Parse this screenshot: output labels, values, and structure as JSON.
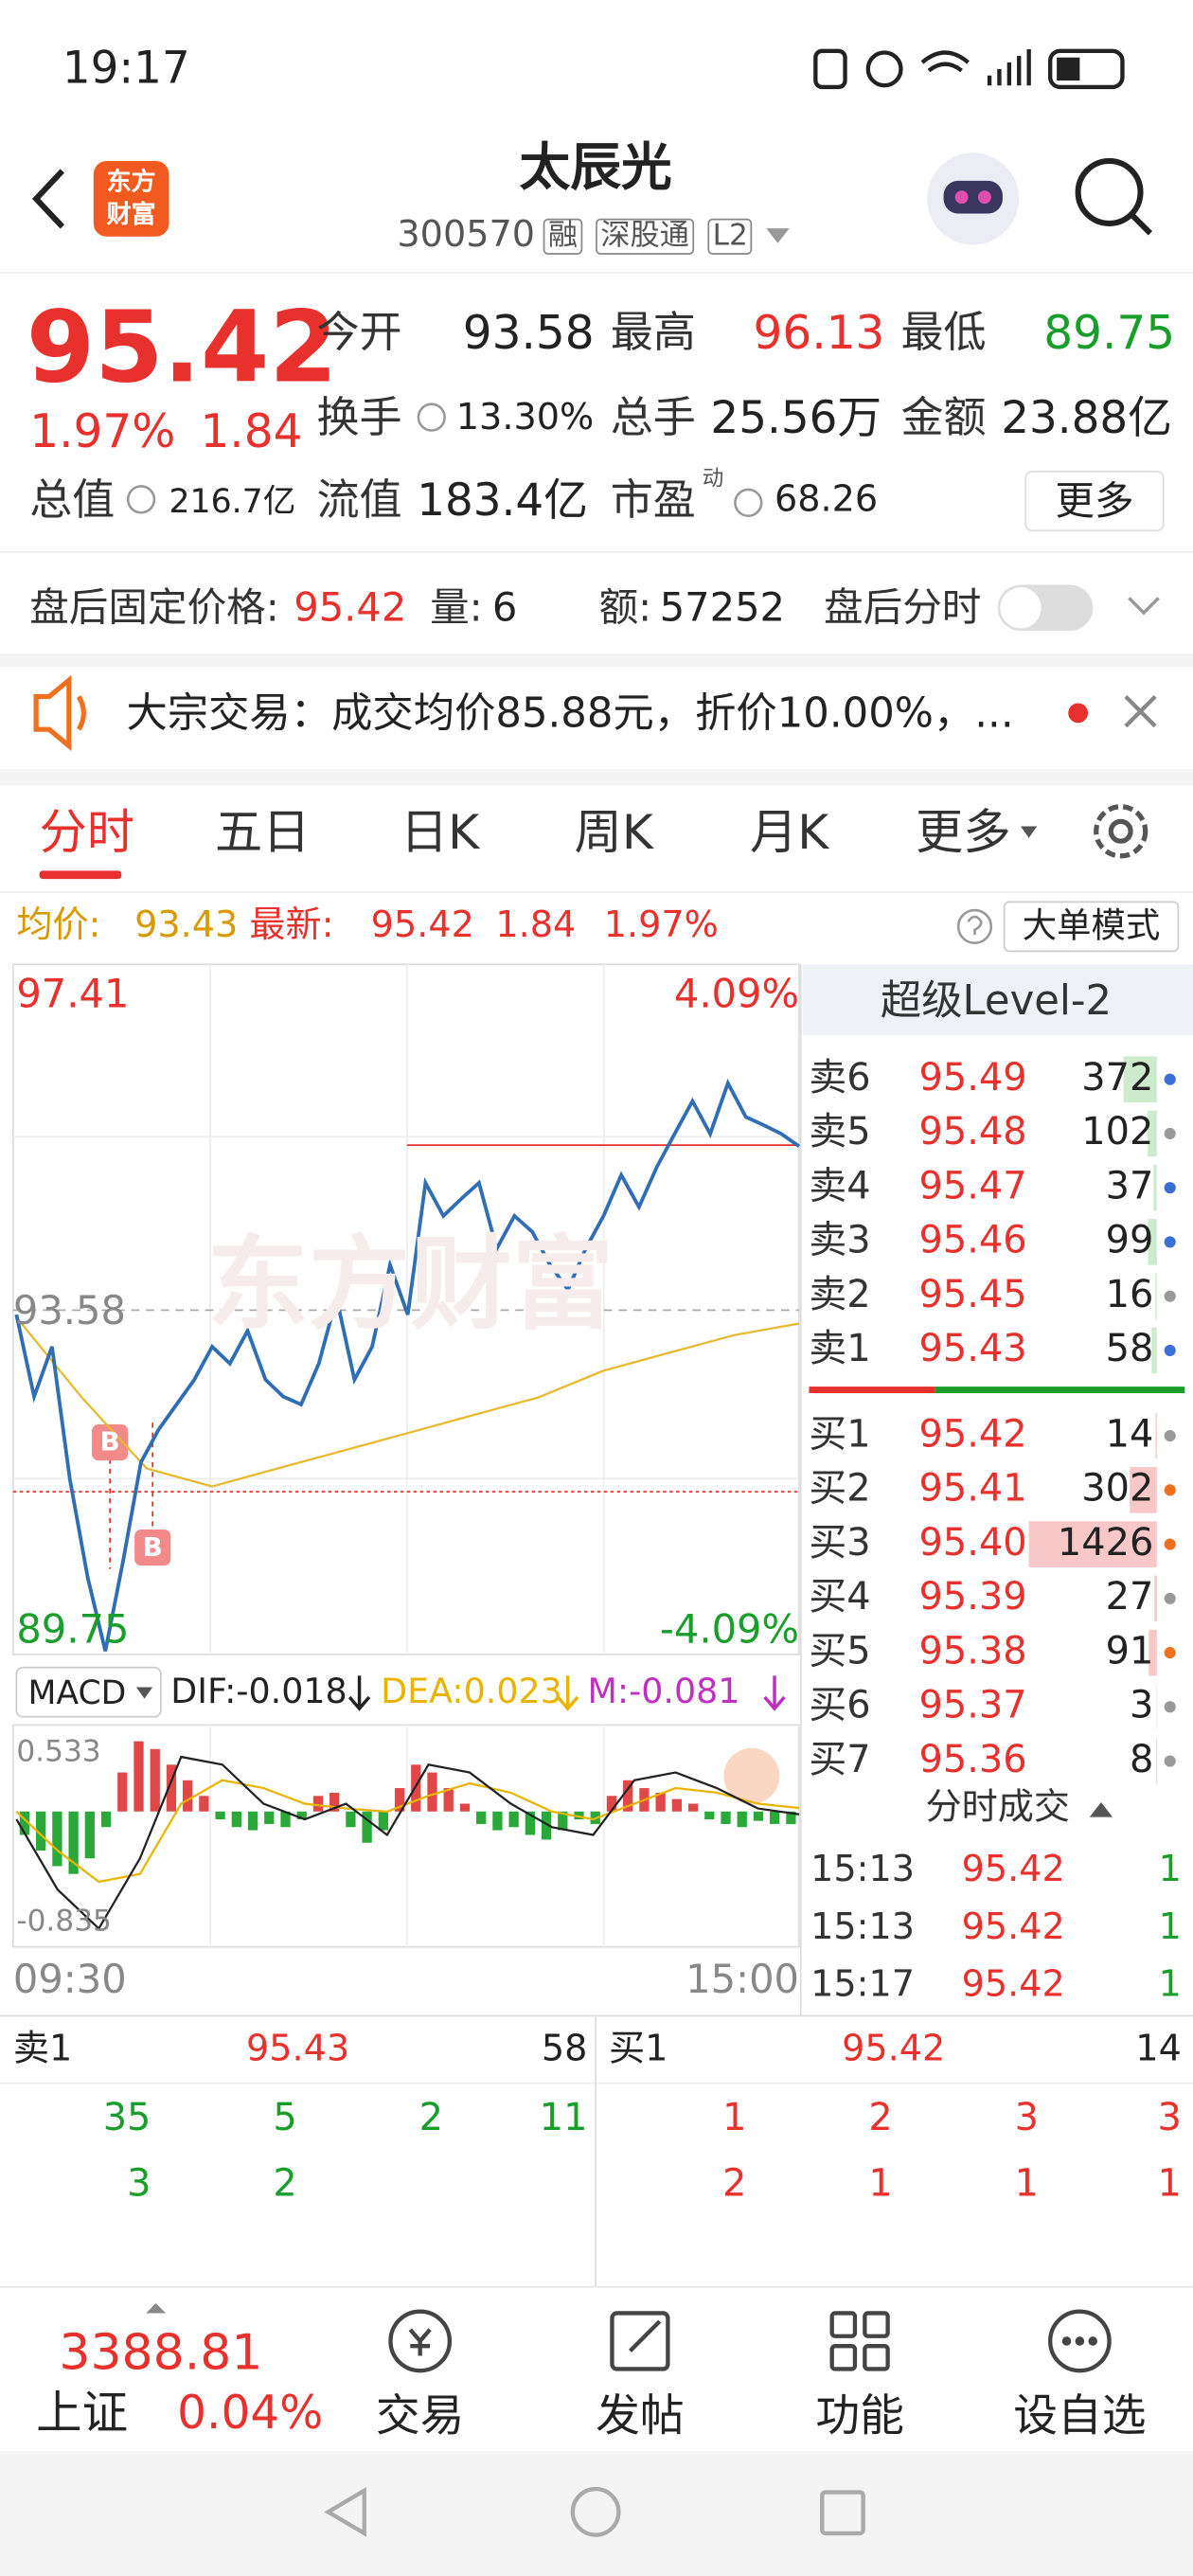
{
  "status_bar": {
    "time": "19:17"
  },
  "header": {
    "logo": [
      "东方",
      "财富"
    ],
    "title": "太辰光",
    "code": "300570",
    "tags": [
      "融",
      "深股通",
      "L2"
    ]
  },
  "quote": {
    "price": "95.42",
    "change_pct": "1.97%",
    "change": "1.84",
    "fields": [
      {
        "label": "今开",
        "value": "93.58"
      },
      {
        "label": "最高",
        "value": "96.13"
      },
      {
        "label": "最低",
        "value": "89.75"
      },
      {
        "label": "换手",
        "value": "13.30%"
      },
      {
        "label": "总手",
        "value": "25.56万"
      },
      {
        "label": "金额",
        "value": "23.88亿"
      },
      {
        "label": "总值",
        "value": "216.7亿"
      },
      {
        "label": "流值",
        "value": "183.4亿"
      },
      {
        "label": "市盈",
        "sup": "动",
        "value": "68.26"
      }
    ],
    "more": "更多"
  },
  "after_hours": {
    "label": "盘后固定价格:",
    "price": "95.42",
    "vol_label": "量:",
    "vol": "6",
    "amount_label": "额:",
    "amount": "57252",
    "toggle": "盘后分时"
  },
  "notice": "大宗交易：成交均价85.88元，折价10.00%，...",
  "tabs": [
    "分时",
    "五日",
    "日K",
    "周K",
    "月K",
    "更多"
  ],
  "info": {
    "avg_label": "均价:",
    "avg": "93.43",
    "last_label": "最新:",
    "last": "95.42",
    "change": "1.84",
    "change_pct": "1.97%",
    "mode": "大单模式"
  },
  "intraday": {
    "watermark": "东方财富",
    "ylim": [
      89.75,
      97.41
    ],
    "preclose": 93.58,
    "pct_top": "4.09%",
    "pct_bottom": "-4.09%",
    "xlabels": [
      "09:30",
      "15:00"
    ],
    "markers": [
      "B",
      "B"
    ],
    "price": [
      93.53,
      92.61,
      93.17,
      91.69,
      90.58,
      89.75,
      90.76,
      91.87,
      92.24,
      92.52,
      92.8,
      93.17,
      92.98,
      93.35,
      92.8,
      92.61,
      92.52,
      92.98,
      93.72,
      92.8,
      93.17,
      94.09,
      93.53,
      95.01,
      94.64,
      94.83,
      95.01,
      94.27,
      94.64,
      94.46,
      94.09,
      93.81,
      94.27,
      94.64,
      95.1,
      94.74,
      95.19,
      95.56,
      95.93,
      95.56,
      96.13,
      95.75,
      95.66,
      95.56,
      95.42
    ],
    "avg": [
      93.5,
      92.6,
      91.8,
      91.6,
      91.8,
      92.0,
      92.2,
      92.4,
      92.6,
      92.9,
      93.1,
      93.3,
      93.43
    ]
  },
  "macd": {
    "selector": "MACD",
    "dif": "DIF:-0.018",
    "dea": "DEA:0.023",
    "m": "M:-0.081",
    "ylim": [
      -0.835,
      0.533
    ],
    "hist": [
      -0.15,
      -0.25,
      -0.35,
      -0.4,
      -0.3,
      -0.1,
      0.25,
      0.45,
      0.4,
      0.3,
      0.2,
      0.1,
      -0.05,
      -0.1,
      -0.12,
      -0.08,
      -0.1,
      -0.05,
      0.1,
      0.12,
      -0.1,
      -0.2,
      -0.12,
      0.15,
      0.3,
      0.25,
      0.15,
      0.05,
      -0.08,
      -0.12,
      -0.1,
      -0.15,
      -0.18,
      -0.12,
      -0.05,
      -0.08,
      0.1,
      0.2,
      0.15,
      0.12,
      0.08,
      0.05,
      -0.05,
      -0.08,
      -0.1,
      -0.06,
      -0.08,
      -0.081
    ],
    "dif_line": [
      -0.05,
      -0.5,
      -0.75,
      -0.3,
      0.35,
      0.3,
      0.05,
      -0.05,
      0.05,
      -0.15,
      0.3,
      0.25,
      0.05,
      -0.1,
      -0.15,
      0.2,
      0.25,
      0.15,
      0.02,
      -0.018
    ],
    "dea_line": [
      0,
      -0.25,
      -0.45,
      -0.4,
      0.05,
      0.2,
      0.15,
      0.05,
      0.02,
      0,
      0.1,
      0.18,
      0.12,
      0,
      -0.05,
      0.05,
      0.15,
      0.12,
      0.05,
      0.023
    ]
  },
  "level2": {
    "title": "超级Level-2",
    "asks": [
      {
        "label": "卖6",
        "price": "95.49",
        "vol": 372
      },
      {
        "label": "卖5",
        "price": "95.48",
        "vol": 102
      },
      {
        "label": "卖4",
        "price": "95.47",
        "vol": 37
      },
      {
        "label": "卖3",
        "price": "95.46",
        "vol": 99
      },
      {
        "label": "卖2",
        "price": "95.45",
        "vol": 16
      },
      {
        "label": "卖1",
        "price": "95.43",
        "vol": 58
      }
    ],
    "bids": [
      {
        "label": "买1",
        "price": "95.42",
        "vol": 14
      },
      {
        "label": "买2",
        "price": "95.41",
        "vol": 302
      },
      {
        "label": "买3",
        "price": "95.40",
        "vol": 1426
      },
      {
        "label": "买4",
        "price": "95.39",
        "vol": 27
      },
      {
        "label": "买5",
        "price": "95.38",
        "vol": 91
      },
      {
        "label": "买6",
        "price": "95.37",
        "vol": 3
      },
      {
        "label": "买7",
        "price": "95.36",
        "vol": 8
      }
    ],
    "trades_title": "分时成交",
    "trades": [
      {
        "time": "15:13",
        "price": "95.42",
        "vol": 1
      },
      {
        "time": "15:13",
        "price": "95.42",
        "vol": 1
      },
      {
        "time": "15:17",
        "price": "95.42",
        "vol": 1
      }
    ]
  },
  "queue": {
    "ask": {
      "label": "卖1",
      "price": "95.43",
      "vol": 58,
      "orders": [
        [
          35,
          5,
          2,
          11
        ],
        [
          3,
          2
        ]
      ]
    },
    "bid": {
      "label": "买1",
      "price": "95.42",
      "vol": 14,
      "orders": [
        [
          1,
          2,
          3,
          3
        ],
        [
          2,
          1,
          1,
          1
        ]
      ]
    }
  },
  "bottom_nav": {
    "index_value": "3388.81",
    "index_name": "上证",
    "index_change": "0.04%",
    "items": [
      "交易",
      "发帖",
      "功能",
      "设自选"
    ]
  }
}
